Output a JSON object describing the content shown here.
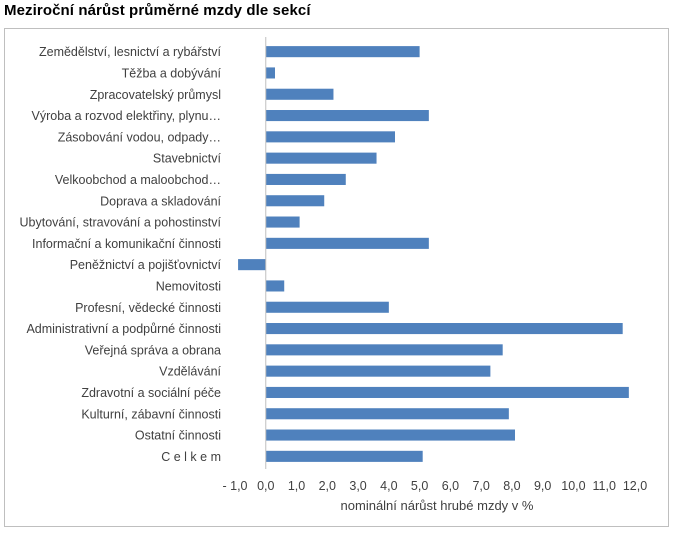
{
  "title": "Meziroční nárůst průměrné mzdy dle sekcí",
  "chart_data": {
    "type": "bar",
    "orientation": "horizontal",
    "categories": [
      "Zemědělství, lesnictví a rybářství",
      "Těžba a dobývání",
      "Zpracovatelský průmysl",
      "Výroba a rozvod elektřiny, plynu…",
      "Zásobování vodou, odpady…",
      "Stavebnictví",
      "Velkoobchod a maloobchod…",
      "Doprava a skladování",
      "Ubytování, stravování a pohostinství",
      "Informační a komunikační činnosti",
      "Peněžnictví a pojišťovnictví",
      "Nemovitosti",
      "Profesní, vědecké činnosti",
      "Administrativní a podpůrné činnosti",
      "Veřejná správa a obrana",
      "Vzdělávání",
      "Zdravotní a sociální péče",
      "Kulturní, zábavní činnosti",
      "Ostatní činnosti",
      "C e l k e m"
    ],
    "values": [
      5.0,
      0.3,
      2.2,
      5.3,
      4.2,
      3.6,
      2.6,
      1.9,
      1.1,
      5.3,
      -0.9,
      0.6,
      4.0,
      11.6,
      7.7,
      7.3,
      11.8,
      7.9,
      8.1,
      5.1
    ],
    "xlim": [
      -1.0,
      12.0
    ],
    "x_ticks": [
      "- 1,0",
      "0,0",
      "1,0",
      "2,0",
      "3,0",
      "4,0",
      "5,0",
      "6,0",
      "7,0",
      "8,0",
      "9,0",
      "10,0",
      "11,0",
      "12,0"
    ],
    "xlabel": "nominální  nárůst hrubé mzdy  v %",
    "grid": false,
    "bar_color": "#4f81bd"
  }
}
